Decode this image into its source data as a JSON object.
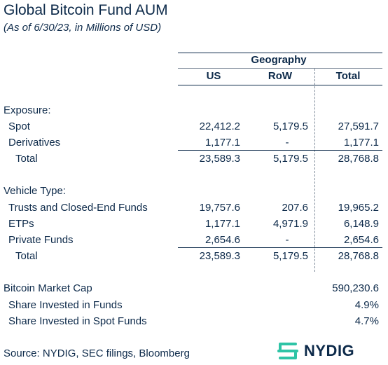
{
  "title": "Global Bitcoin Fund AUM",
  "subtitle": "(As of 6/30/23, in Millions of USD)",
  "header": {
    "group": "Geography",
    "cols": [
      "US",
      "RoW",
      "Total"
    ]
  },
  "exposure": {
    "heading": "Exposure:",
    "rows": [
      {
        "label": "Spot",
        "us": "22,412.2",
        "row": "5,179.5",
        "total": "27,591.7"
      },
      {
        "label": "Derivatives",
        "us": "1,177.1",
        "row": "-",
        "total": "1,177.1"
      }
    ],
    "total": {
      "label": "Total",
      "us": "23,589.3",
      "row": "5,179.5",
      "total": "28,768.8"
    }
  },
  "vehicle": {
    "heading": "Vehicle Type:",
    "rows": [
      {
        "label": "Trusts and Closed-End Funds",
        "us": "19,757.6",
        "row": "207.6",
        "total": "19,965.2"
      },
      {
        "label": "ETPs",
        "us": "1,177.1",
        "row": "4,971.9",
        "total": "6,148.9"
      },
      {
        "label": "Private Funds",
        "us": "2,654.6",
        "row": "-",
        "total": "2,654.6"
      }
    ],
    "total": {
      "label": "Total",
      "us": "23,589.3",
      "row": "5,179.5",
      "total": "28,768.8"
    }
  },
  "market": {
    "cap_label": "Bitcoin Market Cap",
    "cap_value": "590,230.6",
    "share_funds_label": "Share Invested in Funds",
    "share_funds_value": "4.9%",
    "share_spot_label": "Share Invested in Spot Funds",
    "share_spot_value": "4.7%"
  },
  "source": "Source: NYDIG, SEC filings, Bloomberg",
  "logo": {
    "icon": "nydig-logo-icon",
    "text": "NYDIG",
    "color": "#2ec4a6"
  }
}
